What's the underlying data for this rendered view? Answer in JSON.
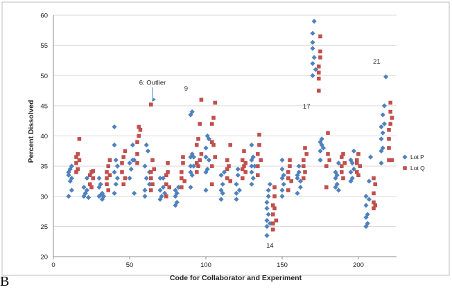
{
  "panel_label": "B",
  "chart_data": {
    "type": "scatter",
    "xlabel": "Code for Collaborator and Experiment",
    "ylabel": "Percent Dissolved",
    "xlim": [
      0,
      225
    ],
    "ylim": [
      20,
      60
    ],
    "xticks": [
      0,
      50,
      100,
      150,
      200
    ],
    "yticks": [
      20,
      25,
      30,
      35,
      40,
      45,
      50,
      55,
      60
    ],
    "grid": "horizontal",
    "legend_position": "right",
    "colors": {
      "Lot P": "#4f81bd",
      "Lot Q": "#c0504d"
    },
    "annotations": [
      {
        "text": "6: Outlier",
        "x": 65,
        "y": 48.5,
        "arrow_to": [
          64,
          45.2
        ]
      },
      {
        "text": "9",
        "x": 87,
        "y": 47.5
      },
      {
        "text": "17",
        "x": 166,
        "y": 44.5
      },
      {
        "text": "21",
        "x": 212,
        "y": 52
      },
      {
        "text": "14",
        "x": 142,
        "y": 21.5
      }
    ],
    "series": [
      {
        "name": "Lot P",
        "marker": "diamond",
        "points": [
          [
            10,
            30
          ],
          [
            10,
            33.5
          ],
          [
            10,
            34
          ],
          [
            11,
            32.5
          ],
          [
            11,
            34.5
          ],
          [
            12,
            31
          ],
          [
            12,
            33
          ],
          [
            12,
            35
          ],
          [
            20,
            30
          ],
          [
            20,
            31.5
          ],
          [
            21,
            30.5
          ],
          [
            22,
            31
          ],
          [
            22,
            33
          ],
          [
            23,
            29.8
          ],
          [
            30,
            30
          ],
          [
            30,
            31.5
          ],
          [
            30,
            33
          ],
          [
            31,
            30.2
          ],
          [
            31,
            32
          ],
          [
            32,
            29.5
          ],
          [
            32,
            30.5
          ],
          [
            33,
            30
          ],
          [
            40,
            30.5
          ],
          [
            40,
            34
          ],
          [
            40,
            38.5
          ],
          [
            40,
            41.5
          ],
          [
            41,
            32
          ],
          [
            41,
            36
          ],
          [
            42,
            33
          ],
          [
            42,
            35
          ],
          [
            50,
            33
          ],
          [
            50,
            35.5
          ],
          [
            51,
            34.5
          ],
          [
            52,
            36
          ],
          [
            52,
            38.5
          ],
          [
            53,
            30.5
          ],
          [
            53,
            36
          ],
          [
            60,
            30
          ],
          [
            60,
            31
          ],
          [
            60,
            35
          ],
          [
            61,
            33
          ],
          [
            61,
            38.5
          ],
          [
            62,
            37.5
          ],
          [
            63,
            32
          ],
          [
            63,
            34
          ],
          [
            70,
            29.5
          ],
          [
            70,
            31
          ],
          [
            70,
            33
          ],
          [
            71,
            30
          ],
          [
            72,
            31.5
          ],
          [
            72,
            33
          ],
          [
            73,
            30.5
          ],
          [
            80,
            28.5
          ],
          [
            80,
            30
          ],
          [
            80,
            31
          ],
          [
            81,
            29
          ],
          [
            81,
            30.5
          ],
          [
            82,
            31.5
          ],
          [
            90,
            31.5
          ],
          [
            90,
            34
          ],
          [
            90,
            35
          ],
          [
            90,
            36.5
          ],
          [
            90,
            43.5
          ],
          [
            91,
            33.5
          ],
          [
            91,
            37
          ],
          [
            91,
            44
          ],
          [
            92,
            35
          ],
          [
            92,
            36.5
          ],
          [
            100,
            31
          ],
          [
            100,
            34
          ],
          [
            100,
            36.5
          ],
          [
            100,
            38
          ],
          [
            101,
            34.5
          ],
          [
            101,
            40
          ],
          [
            102,
            36
          ],
          [
            102,
            39.5
          ],
          [
            110,
            29.5
          ],
          [
            110,
            31
          ],
          [
            110,
            33.5
          ],
          [
            111,
            30.5
          ],
          [
            111,
            32
          ],
          [
            112,
            34
          ],
          [
            120,
            29.5
          ],
          [
            120,
            30.5
          ],
          [
            120,
            32
          ],
          [
            121,
            33.5
          ],
          [
            121,
            34.5
          ],
          [
            122,
            31
          ],
          [
            130,
            32
          ],
          [
            130,
            34
          ],
          [
            130,
            35
          ],
          [
            130,
            36
          ],
          [
            130,
            38.5
          ],
          [
            131,
            33
          ],
          [
            131,
            36.5
          ],
          [
            132,
            35
          ],
          [
            140,
            23.5
          ],
          [
            140,
            25
          ],
          [
            140,
            26
          ],
          [
            140,
            28
          ],
          [
            140,
            29
          ],
          [
            141,
            27
          ],
          [
            141,
            30
          ],
          [
            141,
            31
          ],
          [
            142,
            25.5
          ],
          [
            142,
            32
          ],
          [
            150,
            30
          ],
          [
            150,
            31
          ],
          [
            150,
            33
          ],
          [
            150,
            34.5
          ],
          [
            150,
            36
          ],
          [
            151,
            32
          ],
          [
            151,
            33.5
          ],
          [
            160,
            30.5
          ],
          [
            160,
            33
          ],
          [
            160,
            33.5
          ],
          [
            161,
            34
          ],
          [
            161,
            35
          ],
          [
            162,
            31.5
          ],
          [
            162,
            32.5
          ],
          [
            170,
            50
          ],
          [
            170,
            52
          ],
          [
            170,
            54.5
          ],
          [
            170,
            55.5
          ],
          [
            170,
            57
          ],
          [
            171,
            53
          ],
          [
            171,
            59
          ],
          [
            172,
            51
          ],
          [
            175,
            36
          ],
          [
            175,
            37.5
          ],
          [
            175,
            39
          ],
          [
            176,
            38.5
          ],
          [
            176,
            39.5
          ],
          [
            177,
            38
          ],
          [
            185,
            31.5
          ],
          [
            185,
            33
          ],
          [
            185,
            34
          ],
          [
            186,
            32
          ],
          [
            186,
            33.5
          ],
          [
            187,
            31
          ],
          [
            187,
            35.5
          ],
          [
            195,
            32.5
          ],
          [
            195,
            34
          ],
          [
            195,
            36
          ],
          [
            196,
            33
          ],
          [
            196,
            35.5
          ],
          [
            197,
            34.5
          ],
          [
            197,
            37.5
          ],
          [
            205,
            25
          ],
          [
            205,
            26.5
          ],
          [
            205,
            28.5
          ],
          [
            205,
            30
          ],
          [
            206,
            25.5
          ],
          [
            206,
            27
          ],
          [
            207,
            29.5
          ],
          [
            207,
            32.5
          ],
          [
            208,
            36.5
          ],
          [
            215,
            35.5
          ],
          [
            215,
            37.5
          ],
          [
            215,
            39.5
          ],
          [
            215,
            41.5
          ],
          [
            216,
            38
          ],
          [
            216,
            40.5
          ],
          [
            216,
            43.5
          ],
          [
            217,
            42
          ],
          [
            217,
            45
          ],
          [
            218,
            49.8
          ]
        ]
      },
      {
        "name": "Lot Q",
        "marker": "square",
        "points": [
          [
            15,
            34
          ],
          [
            15,
            35.5
          ],
          [
            15,
            36.5
          ],
          [
            16,
            34.5
          ],
          [
            16,
            37
          ],
          [
            17,
            36
          ],
          [
            17,
            39.5
          ],
          [
            24,
            32
          ],
          [
            24,
            33.5
          ],
          [
            25,
            34
          ],
          [
            25,
            31.5
          ],
          [
            26,
            33
          ],
          [
            26,
            34.2
          ],
          [
            35,
            32
          ],
          [
            35,
            33
          ],
          [
            35,
            34
          ],
          [
            36,
            31
          ],
          [
            36,
            35
          ],
          [
            37,
            33.5
          ],
          [
            37,
            36
          ],
          [
            45,
            34
          ],
          [
            45,
            35.5
          ],
          [
            46,
            32
          ],
          [
            46,
            36.5
          ],
          [
            47,
            33
          ],
          [
            47,
            37.5
          ],
          [
            55,
            35.5
          ],
          [
            55,
            37
          ],
          [
            55,
            39
          ],
          [
            56,
            41.5
          ],
          [
            56,
            40
          ],
          [
            57,
            41
          ],
          [
            64,
            31
          ],
          [
            64,
            33
          ],
          [
            64,
            34
          ],
          [
            64,
            45.2
          ],
          [
            65,
            32
          ],
          [
            65,
            36
          ],
          [
            66,
            34.5
          ],
          [
            74,
            30
          ],
          [
            74,
            32
          ],
          [
            74,
            33.5
          ],
          [
            75,
            34
          ],
          [
            75,
            35.5
          ],
          [
            76,
            31.5
          ],
          [
            84,
            31.5
          ],
          [
            84,
            33
          ],
          [
            84,
            34
          ],
          [
            85,
            35.5
          ],
          [
            85,
            36.5
          ],
          [
            86,
            32.5
          ],
          [
            94,
            34
          ],
          [
            94,
            35.5
          ],
          [
            94,
            38.5
          ],
          [
            95,
            35
          ],
          [
            95,
            39.5
          ],
          [
            96,
            36
          ],
          [
            96,
            42
          ],
          [
            97,
            46
          ],
          [
            97,
            37
          ],
          [
            104,
            32
          ],
          [
            104,
            35
          ],
          [
            104,
            39
          ],
          [
            104,
            42
          ],
          [
            105,
            38.5
          ],
          [
            105,
            43
          ],
          [
            106,
            45.5
          ],
          [
            106,
            36.5
          ],
          [
            114,
            33
          ],
          [
            114,
            34.5
          ],
          [
            114,
            36
          ],
          [
            115,
            35
          ],
          [
            116,
            38.5
          ],
          [
            116,
            32.5
          ],
          [
            124,
            33
          ],
          [
            124,
            34.5
          ],
          [
            124,
            36
          ],
          [
            125,
            35
          ],
          [
            125,
            37.5
          ],
          [
            126,
            35.5
          ],
          [
            126,
            34
          ],
          [
            134,
            33.5
          ],
          [
            134,
            35
          ],
          [
            134,
            37
          ],
          [
            135,
            38.5
          ],
          [
            135,
            40.2
          ],
          [
            136,
            36
          ],
          [
            144,
            24.5
          ],
          [
            144,
            25.5
          ],
          [
            144,
            27
          ],
          [
            144,
            28.5
          ],
          [
            145,
            30
          ],
          [
            145,
            31.5
          ],
          [
            145,
            28
          ],
          [
            146,
            26
          ],
          [
            154,
            31
          ],
          [
            154,
            33
          ],
          [
            154,
            34
          ],
          [
            155,
            35
          ],
          [
            155,
            36
          ],
          [
            156,
            32.5
          ],
          [
            164,
            33
          ],
          [
            164,
            35
          ],
          [
            164,
            36
          ],
          [
            165,
            34
          ],
          [
            165,
            38
          ],
          [
            166,
            37
          ],
          [
            174,
            47.5
          ],
          [
            174,
            49.5
          ],
          [
            174,
            50.5
          ],
          [
            174,
            51.5
          ],
          [
            175,
            53
          ],
          [
            175,
            54
          ],
          [
            175,
            56.5
          ],
          [
            179,
            31.5
          ],
          [
            179,
            35
          ],
          [
            180,
            37
          ],
          [
            180,
            40.5
          ],
          [
            181,
            36
          ],
          [
            189,
            34
          ],
          [
            189,
            35
          ],
          [
            189,
            36.5
          ],
          [
            190,
            33
          ],
          [
            190,
            37
          ],
          [
            191,
            35.5
          ],
          [
            199,
            34
          ],
          [
            199,
            35.5
          ],
          [
            199,
            36
          ],
          [
            200,
            33.5
          ],
          [
            200,
            37
          ],
          [
            201,
            35
          ],
          [
            210,
            28
          ],
          [
            210,
            29
          ],
          [
            210,
            30.5
          ],
          [
            210,
            33
          ],
          [
            211,
            28.5
          ],
          [
            211,
            32
          ],
          [
            220,
            36
          ],
          [
            220,
            38
          ],
          [
            220,
            39.5
          ],
          [
            220,
            41
          ],
          [
            221,
            42
          ],
          [
            221,
            44
          ],
          [
            221,
            45.5
          ],
          [
            222,
            43
          ],
          [
            222,
            36
          ]
        ]
      }
    ]
  }
}
